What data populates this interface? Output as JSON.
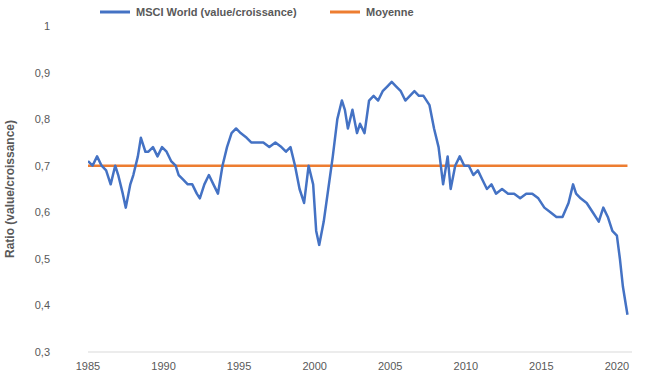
{
  "chart_data": {
    "type": "line",
    "y_label": "Ratio (value/croissance)",
    "legend": "top",
    "grid": false,
    "xlim": [
      1985,
      2021
    ],
    "xticks": [
      1985,
      1990,
      1995,
      2000,
      2005,
      2010,
      2015,
      2020
    ],
    "ylim": [
      0.3,
      1
    ],
    "yticks": [
      {
        "value": 0.3,
        "label": "0,3"
      },
      {
        "value": 0.4,
        "label": "0,4"
      },
      {
        "value": 0.5,
        "label": "0,5"
      },
      {
        "value": 0.6,
        "label": "0,6"
      },
      {
        "value": 0.7,
        "label": "0,7"
      },
      {
        "value": 0.8,
        "label": "0,8"
      },
      {
        "value": 0.9,
        "label": "0,9"
      },
      1
    ],
    "x": [
      1985.0,
      1985.3,
      1985.6,
      1985.9,
      1986.2,
      1986.5,
      1986.8,
      1987.0,
      1987.3,
      1987.5,
      1987.8,
      1988.0,
      1988.3,
      1988.5,
      1988.8,
      1989.0,
      1989.3,
      1989.6,
      1989.9,
      1990.2,
      1990.5,
      1990.8,
      1991.0,
      1991.3,
      1991.6,
      1991.9,
      1992.2,
      1992.4,
      1992.7,
      1993.0,
      1993.3,
      1993.6,
      1993.9,
      1994.2,
      1994.5,
      1994.8,
      1995.1,
      1995.5,
      1995.8,
      1996.2,
      1996.6,
      1997.0,
      1997.4,
      1997.8,
      1998.1,
      1998.4,
      1998.7,
      1999.0,
      1999.3,
      1999.6,
      1999.9,
      2000.1,
      2000.3,
      2000.6,
      2000.9,
      2001.2,
      2001.5,
      2001.8,
      2002.0,
      2002.2,
      2002.5,
      2002.8,
      2003.0,
      2003.3,
      2003.6,
      2003.9,
      2004.2,
      2004.5,
      2004.8,
      2005.1,
      2005.4,
      2005.7,
      2006.0,
      2006.3,
      2006.6,
      2006.9,
      2007.2,
      2007.6,
      2007.9,
      2008.2,
      2008.5,
      2008.8,
      2009.0,
      2009.3,
      2009.6,
      2009.9,
      2010.2,
      2010.5,
      2010.8,
      2011.1,
      2011.4,
      2011.7,
      2012.0,
      2012.4,
      2012.8,
      2013.2,
      2013.6,
      2014.0,
      2014.4,
      2014.8,
      2015.2,
      2015.6,
      2016.0,
      2016.4,
      2016.8,
      2017.1,
      2017.3,
      2017.6,
      2018.0,
      2018.4,
      2018.8,
      2019.1,
      2019.4,
      2019.7,
      2020.0,
      2020.2,
      2020.4,
      2020.6,
      2020.7
    ],
    "series": [
      {
        "name": "MSCI World (value/croissance)",
        "color": "#4472c4",
        "values": [
          0.71,
          0.7,
          0.72,
          0.7,
          0.69,
          0.66,
          0.7,
          0.68,
          0.64,
          0.61,
          0.66,
          0.68,
          0.72,
          0.76,
          0.73,
          0.73,
          0.74,
          0.72,
          0.74,
          0.73,
          0.71,
          0.7,
          0.68,
          0.67,
          0.66,
          0.66,
          0.64,
          0.63,
          0.66,
          0.68,
          0.66,
          0.64,
          0.7,
          0.74,
          0.77,
          0.78,
          0.77,
          0.76,
          0.75,
          0.75,
          0.75,
          0.74,
          0.75,
          0.74,
          0.73,
          0.74,
          0.7,
          0.65,
          0.62,
          0.7,
          0.66,
          0.56,
          0.53,
          0.58,
          0.65,
          0.72,
          0.8,
          0.84,
          0.82,
          0.78,
          0.82,
          0.77,
          0.79,
          0.77,
          0.84,
          0.85,
          0.84,
          0.86,
          0.87,
          0.88,
          0.87,
          0.86,
          0.84,
          0.85,
          0.86,
          0.85,
          0.85,
          0.83,
          0.78,
          0.74,
          0.66,
          0.72,
          0.65,
          0.7,
          0.72,
          0.7,
          0.7,
          0.68,
          0.69,
          0.67,
          0.65,
          0.66,
          0.64,
          0.65,
          0.64,
          0.64,
          0.63,
          0.64,
          0.64,
          0.63,
          0.61,
          0.6,
          0.59,
          0.59,
          0.62,
          0.66,
          0.64,
          0.63,
          0.62,
          0.6,
          0.58,
          0.61,
          0.59,
          0.56,
          0.55,
          0.5,
          0.44,
          0.4,
          0.38
        ]
      },
      {
        "name": "Moyenne",
        "color": "#ed7d31",
        "x": [
          1985,
          2020.7
        ],
        "values": [
          0.7,
          0.7
        ]
      }
    ]
  }
}
